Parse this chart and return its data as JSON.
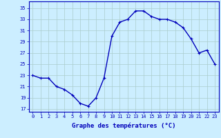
{
  "hours": [
    0,
    1,
    2,
    3,
    4,
    5,
    6,
    7,
    8,
    9,
    10,
    11,
    12,
    13,
    14,
    15,
    16,
    17,
    18,
    19,
    20,
    21,
    22,
    23
  ],
  "temps": [
    23.0,
    22.5,
    22.5,
    21.0,
    20.5,
    19.5,
    18.0,
    17.5,
    19.0,
    22.5,
    30.0,
    32.5,
    33.0,
    34.5,
    34.5,
    33.5,
    33.0,
    33.0,
    32.5,
    31.5,
    29.5,
    27.0,
    27.5,
    25.0
  ],
  "line_color": "#0000bb",
  "marker": "+",
  "marker_size": 3,
  "marker_lw": 0.8,
  "bg_color": "#cceeff",
  "grid_color": "#aacccc",
  "xlabel": "Graphe des températures (°C)",
  "xlabel_color": "#0000bb",
  "ylabel_ticks": [
    17,
    19,
    21,
    23,
    25,
    27,
    29,
    31,
    33,
    35
  ],
  "xlim": [
    -0.5,
    23.5
  ],
  "ylim": [
    16.5,
    36.2
  ],
  "xtick_labels": [
    "0",
    "1",
    "2",
    "3",
    "4",
    "5",
    "6",
    "7",
    "8",
    "9",
    "10",
    "11",
    "12",
    "13",
    "14",
    "15",
    "16",
    "17",
    "18",
    "19",
    "20",
    "21",
    "22",
    "23"
  ],
  "tick_color": "#0000bb",
  "axis_color": "#0000bb",
  "line_width": 1.0,
  "tick_fontsize": 5.0,
  "xlabel_fontsize": 6.5,
  "xlabel_fontweight": "bold"
}
